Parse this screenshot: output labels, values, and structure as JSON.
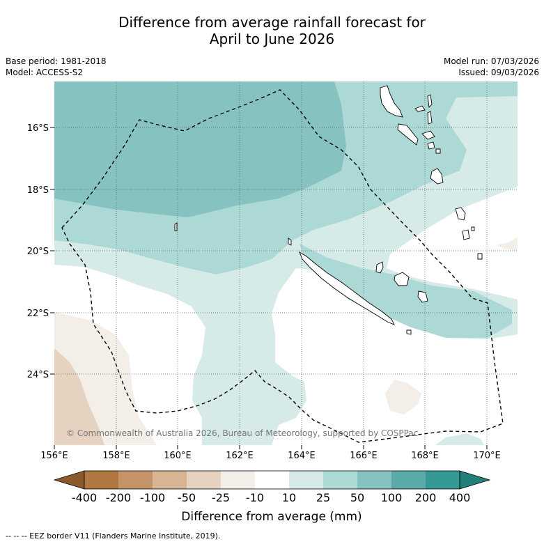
{
  "title": {
    "line1": "Difference from average rainfall forecast for",
    "line2": "April to June 2026"
  },
  "info": {
    "base_period": "Base period: 1981-2018",
    "model": "Model: ACCESS-S2",
    "model_run": "Model run: 07/03/2026",
    "issued": "Issued: 09/03/2026"
  },
  "map": {
    "lat_labels": [
      "16°S",
      "18°S",
      "20°S",
      "22°S",
      "24°S"
    ],
    "lon_labels": [
      "156°E",
      "158°E",
      "160°E",
      "162°E",
      "164°E",
      "166°E",
      "168°E",
      "170°E"
    ],
    "copyright": "© Commonwealth of Australia 2026, Bureau of Meteorology, supported by COSPPac"
  },
  "colorbar": {
    "title": "Difference from average (mm)",
    "ticks": [
      "-400",
      "-200",
      "-100",
      "-50",
      "-25",
      "-10",
      "10",
      "25",
      "50",
      "100",
      "200",
      "400"
    ],
    "colors": [
      "#8c5a2a",
      "#b07840",
      "#c49468",
      "#d6b494",
      "#e6d2c0",
      "#f3eee8",
      "#ffffff",
      "#d6eae8",
      "#acd8d6",
      "#86c2c0",
      "#5aaaaa",
      "#359a94",
      "#227e78"
    ]
  },
  "footer": {
    "legend": "--  --  -- EEZ border V11 (Flanders Marine Institute, 2019)."
  }
}
